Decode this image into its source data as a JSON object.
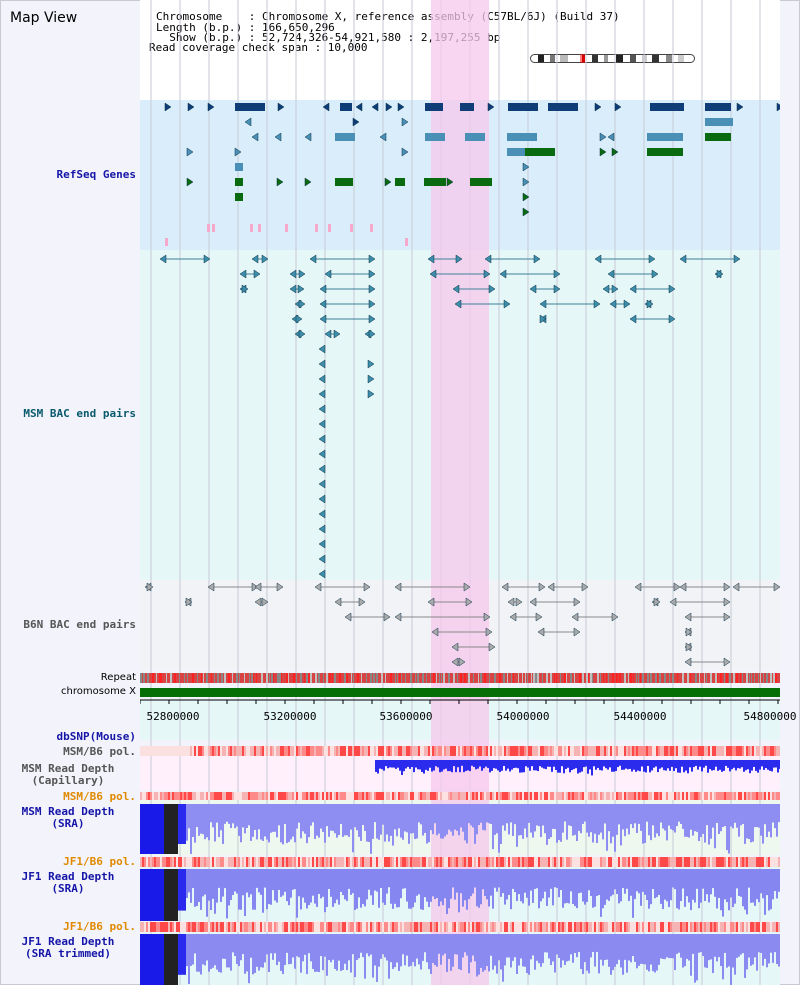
{
  "title": "Map View",
  "header": {
    "line1": "Chromosome    : Chromosome X, reference assembly (C57BL/6J) (Build 37)",
    "line2": "Length (b.p.) : 166,650,296",
    "line3": "  Show (b.p.) : 52,724,326-54,921,580 : 2,197,255 bp",
    "line4": "Read coverage check span : 10,000"
  },
  "tracks": {
    "refseq": "RefSeq Genes",
    "msm_bac": "MSM BAC end pairs",
    "b6n_bac": "B6N BAC end pairs",
    "repeat": "Repeat",
    "chromosome": "chromosome X",
    "dbsnp": "dbSNP(Mouse)",
    "msm_b6_pol_1": "MSM/B6 pol.",
    "msm_read_depth_cap_1": "MSM Read Depth",
    "msm_read_depth_cap_2": "(Capillary)",
    "msm_b6_pol_2": "MSM/B6 pol.",
    "msm_read_depth_sra_1": "MSM Read Depth",
    "msm_read_depth_sra_2": "(SRA)",
    "jf1_b6_pol_1": "JF1/B6 pol.",
    "jf1_read_depth_sra_1": "JF1 Read Depth",
    "jf1_read_depth_sra_2": "(SRA)",
    "jf1_b6_pol_2": "JF1/B6 pol.",
    "jf1_read_depth_trim_1": "JF1 Read Depth",
    "jf1_read_depth_trim_2": "(SRA trimmed)"
  },
  "axis": {
    "ticks": [
      "52800000",
      "53200000",
      "53600000",
      "54000000",
      "54400000",
      "54800000"
    ]
  },
  "colors": {
    "gene_dark": "#0e3d78",
    "gene_mid": "#4a8fb5",
    "gene_green": "#0a6a10",
    "highlight": "#f6c8ec",
    "refseq_bg": "#d9eefa",
    "bac_bg": "#e6f7f7",
    "b6n_bg": "#f1f3f7",
    "chromosome_bar": "#067006",
    "depth_blue": "#1010ee"
  },
  "icons": {
    "ideogram": "chromosome-ideogram-icon"
  }
}
